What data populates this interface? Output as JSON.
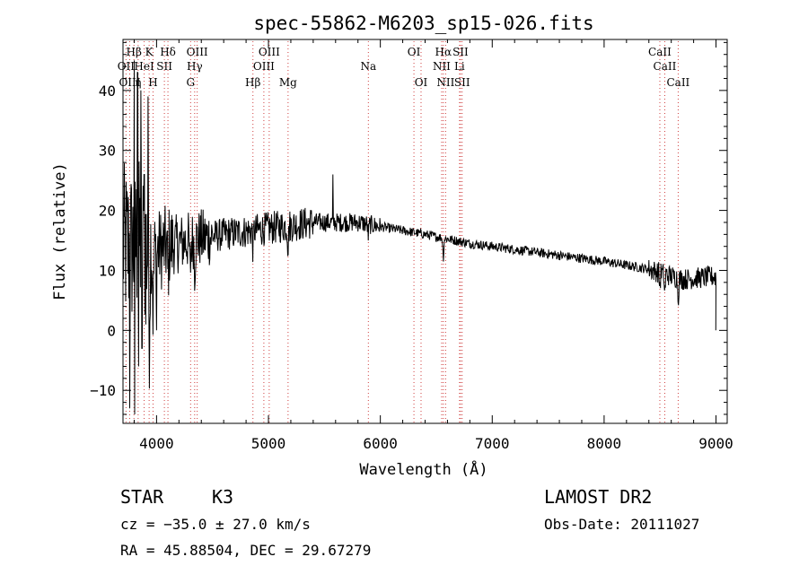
{
  "chart_data": {
    "type": "line",
    "title": "spec-55862-M6203_sp15-026.fits",
    "xlabel": "Wavelength (Å)",
    "ylabel": "Flux (relative)",
    "xlim": [
      3700,
      9100
    ],
    "ylim": [
      -15.5,
      48.5
    ],
    "xticks": [
      4000,
      5000,
      6000,
      7000,
      8000,
      9000
    ],
    "xtick_labels": [
      "4000",
      "5000",
      "6000",
      "7000",
      "8000",
      "9000"
    ],
    "yticks": [
      -10,
      0,
      10,
      20,
      30,
      40
    ],
    "ytick_labels": [
      "−10",
      "0",
      "10",
      "20",
      "30",
      "40"
    ],
    "grid": false,
    "legend": "none",
    "spectrum_continuum": {
      "x": [
        3780,
        3850,
        3950,
        4100,
        4300,
        4600,
        5000,
        5400,
        5800,
        6000,
        6400,
        6800,
        7200,
        7600,
        8000,
        8400,
        8700,
        9000
      ],
      "y": [
        14,
        15,
        13,
        14,
        15,
        16,
        17,
        18,
        18,
        17.3,
        16,
        14.5,
        13.5,
        12.5,
        11.5,
        10.2,
        8.5,
        9
      ]
    },
    "absorption_features": [
      {
        "x": 3934,
        "depth": 12
      },
      {
        "x": 3969,
        "depth": 11
      },
      {
        "x": 4102,
        "depth": 6
      },
      {
        "x": 4300,
        "depth": 6
      },
      {
        "x": 4341,
        "depth": 5
      },
      {
        "x": 4861,
        "depth": 3
      },
      {
        "x": 5175,
        "depth": 4
      },
      {
        "x": 5892,
        "depth": 2
      },
      {
        "x": 6563,
        "depth": 3.5
      },
      {
        "x": 8498,
        "depth": 2.5
      },
      {
        "x": 8542,
        "depth": 3.5
      },
      {
        "x": 8662,
        "depth": 3.5
      }
    ],
    "spikes": [
      {
        "x": 3800,
        "y": 45
      },
      {
        "x": 3830,
        "y": 43
      },
      {
        "x": 3860,
        "y": 40
      },
      {
        "x": 3890,
        "y": 26
      },
      {
        "x": 3925,
        "y": 39
      },
      {
        "x": 5577,
        "y": 26
      }
    ],
    "dips": [
      {
        "x": 3760,
        "y": -13
      },
      {
        "x": 3805,
        "y": -14
      },
      {
        "x": 3840,
        "y": -6
      },
      {
        "x": 3870,
        "y": -3
      },
      {
        "x": 3905,
        "y": 1
      },
      {
        "x": 4000,
        "y": 0
      }
    ],
    "line_markers": [
      {
        "label": "Hβ",
        "x": 3798,
        "row": 1
      },
      {
        "label": "K",
        "x": 3933.7,
        "row": 1
      },
      {
        "label": "Hδ",
        "x": 4101.7,
        "row": 1
      },
      {
        "label": "OIII",
        "x": 4363.2,
        "row": 1
      },
      {
        "label": "OIII",
        "x": 5006.8,
        "row": 1
      },
      {
        "label": "OI",
        "x": 6300.3,
        "row": 1
      },
      {
        "label": "Hα",
        "x": 6562.8,
        "row": 1
      },
      {
        "label": "SII",
        "x": 6716.4,
        "row": 1
      },
      {
        "label": "CaII",
        "x": 8498,
        "row": 1
      },
      {
        "label": "OII",
        "x": 3727,
        "row": 2
      },
      {
        "label": "HeI",
        "x": 3889,
        "row": 2
      },
      {
        "label": "SII",
        "x": 4070,
        "row": 2
      },
      {
        "label": "Hγ",
        "x": 4340.5,
        "row": 2
      },
      {
        "label": "OIII",
        "x": 4958.9,
        "row": 2
      },
      {
        "label": "Na",
        "x": 5893,
        "row": 2
      },
      {
        "label": "NII",
        "x": 6548,
        "row": 2
      },
      {
        "label": "Li",
        "x": 6707.8,
        "row": 2
      },
      {
        "label": "CaII",
        "x": 8542,
        "row": 2
      },
      {
        "label": "OIII",
        "x": 3760,
        "row": 3
      },
      {
        "label": "η",
        "x": 3835.4,
        "row": 3
      },
      {
        "label": "H",
        "x": 3968.5,
        "row": 3
      },
      {
        "label": "G",
        "x": 4304.4,
        "row": 3
      },
      {
        "label": "Hβ",
        "x": 4861.3,
        "row": 3
      },
      {
        "label": "Mg",
        "x": 5175.3,
        "row": 3
      },
      {
        "label": "OI",
        "x": 6363.8,
        "row": 3
      },
      {
        "label": "NII",
        "x": 6583.4,
        "row": 3
      },
      {
        "label": "SII",
        "x": 6730.8,
        "row": 3
      },
      {
        "label": "CaII",
        "x": 8662,
        "row": 3
      }
    ]
  },
  "info": {
    "object_class": "STAR",
    "subclass": "K3",
    "survey": "LAMOST DR2",
    "redshift": "cz = −35.0 ± 27.0 km/s",
    "obs_date": "Obs-Date: 20111027",
    "coords": "RA =  45.88504, DEC =  29.67279"
  }
}
